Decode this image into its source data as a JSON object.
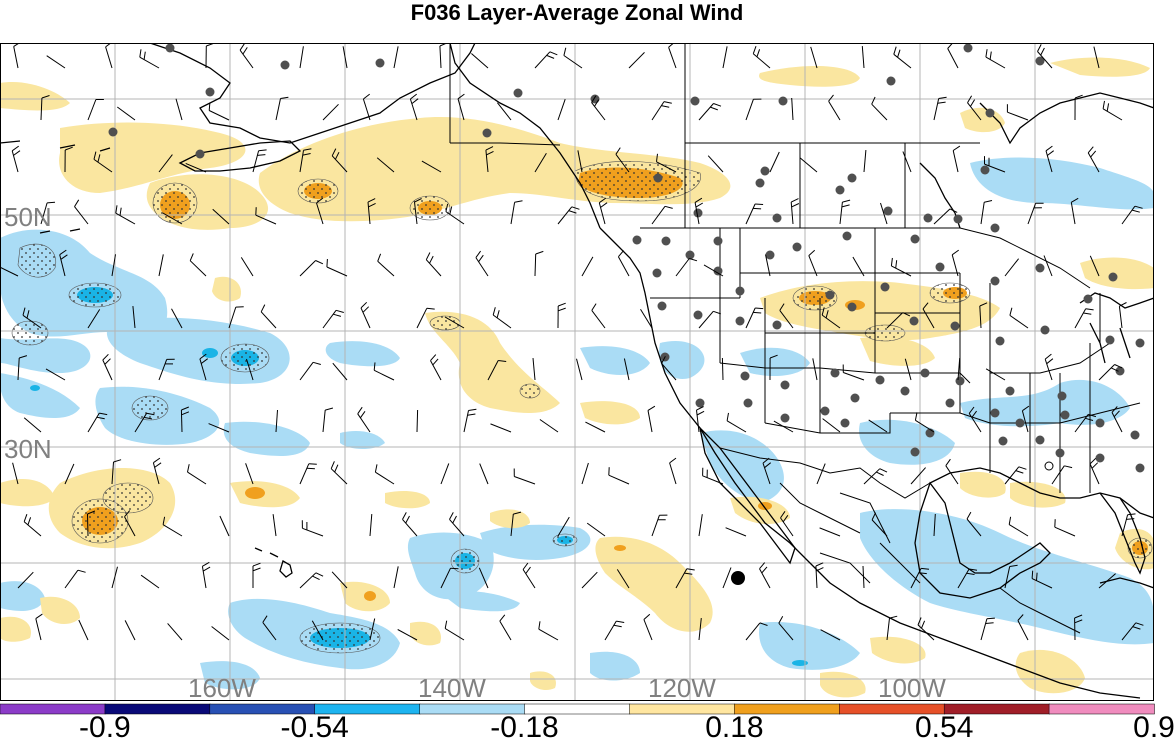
{
  "title": "F036 Layer-Average Zonal Wind",
  "map": {
    "projection": "lat-lon",
    "lat_labels": [
      {
        "text": "50N",
        "lat": 50
      },
      {
        "text": "30N",
        "lat": 30
      }
    ],
    "lon_labels": [
      {
        "text": "160W",
        "lon": -160
      },
      {
        "text": "140W",
        "lon": -140
      },
      {
        "text": "120W",
        "lon": -120
      },
      {
        "text": "100W",
        "lon": -100
      }
    ],
    "gridlines": true,
    "fill_colors": {
      "light_blue": "#aadcf5",
      "blue": "#1ab4e6",
      "yellow": "#fae6a0",
      "orange": "#f0a01e",
      "ocean_white": "#ffffff"
    }
  },
  "colorbar": {
    "colors": [
      "#8c3cc8",
      "#0a0a78",
      "#2850b4",
      "#1eb4f0",
      "#aadcf5",
      "#ffffff",
      "#ffe6a0",
      "#f0a01e",
      "#e65028",
      "#a01e28",
      "#f08cbe"
    ],
    "labels": [
      "-0.9",
      "-0.54",
      "-0.18",
      "0.18",
      "0.54",
      "0.9"
    ]
  }
}
